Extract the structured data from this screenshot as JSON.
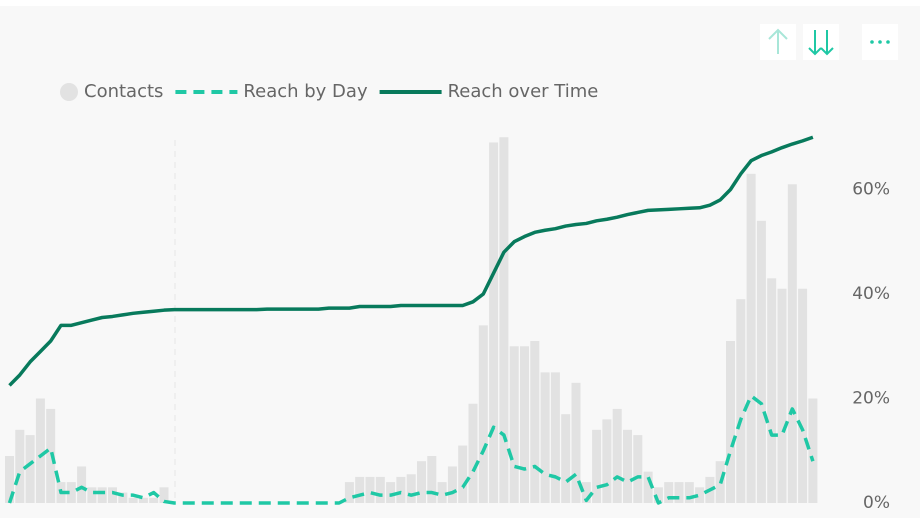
{
  "chart_data": {
    "type": "combo",
    "categories": [
      null,
      null,
      null,
      null,
      null,
      null,
      null,
      null,
      null,
      null,
      null,
      null,
      null,
      null,
      null,
      null,
      null,
      null,
      null,
      null,
      null,
      null,
      null,
      null,
      null,
      null,
      null,
      null,
      null,
      null,
      null,
      null,
      null,
      null,
      null,
      null,
      null,
      null,
      null,
      null,
      null,
      null,
      null,
      null,
      null,
      null,
      null,
      null,
      null,
      null,
      null,
      null,
      null,
      null,
      null,
      null,
      null,
      null,
      null,
      null,
      null,
      null,
      null,
      null,
      null,
      null,
      null,
      null,
      null,
      null,
      null,
      null,
      null,
      null,
      null,
      null,
      null,
      null,
      null
    ],
    "series": [
      {
        "name": "Contacts",
        "kind": "bar",
        "axis": "y",
        "color": "#e2e2e2",
        "values": [
          9,
          14,
          13,
          20,
          18,
          4,
          4,
          7,
          3,
          3,
          3,
          2,
          1,
          1,
          1,
          3,
          0,
          0,
          0,
          0,
          0,
          0,
          0,
          0,
          0,
          0,
          0,
          0,
          0,
          0,
          0,
          0,
          0,
          4,
          5,
          5,
          5,
          4,
          5,
          5.5,
          8,
          9,
          4,
          7,
          11,
          19,
          34,
          69,
          70,
          30,
          30,
          31,
          25,
          25,
          17,
          23,
          4,
          14,
          16,
          18,
          14,
          13,
          6,
          3,
          4,
          4,
          4,
          3,
          5,
          8,
          31,
          39,
          63,
          54,
          43,
          41,
          61,
          41,
          20
        ]
      },
      {
        "name": "Reach by Day",
        "kind": "line",
        "dash": true,
        "axis": "y2",
        "color": "#1fc8a5",
        "values": [
          0,
          6,
          7.5,
          9,
          10.5,
          2,
          2,
          3,
          2,
          2,
          2,
          1.5,
          1.5,
          1,
          2,
          0.3,
          0,
          0,
          0,
          0,
          0,
          0,
          0,
          0,
          0,
          0,
          0,
          0,
          0,
          0,
          0,
          0,
          0,
          1,
          1.5,
          2,
          1.5,
          1.5,
          2,
          1.5,
          2,
          2,
          1.5,
          2,
          3,
          6,
          10,
          14.5,
          13,
          7,
          6.5,
          7,
          5.5,
          5,
          4,
          5.5,
          0.5,
          3,
          3.5,
          5,
          4,
          5,
          5,
          0,
          1,
          1,
          1,
          1.5,
          2.5,
          3.5,
          10,
          16,
          20.5,
          19,
          13,
          13,
          18,
          14,
          8
        ]
      },
      {
        "name": "Reach over Time",
        "kind": "line",
        "dash": false,
        "axis": "y2",
        "color": "#087a5c",
        "values": [
          22.5,
          24.5,
          27,
          29,
          31,
          34,
          34,
          34.5,
          35,
          35.5,
          35.7,
          36,
          36.3,
          36.5,
          36.7,
          36.9,
          37,
          37,
          37,
          37,
          37,
          37,
          37,
          37,
          37,
          37.1,
          37.1,
          37.1,
          37.1,
          37.1,
          37.1,
          37.3,
          37.3,
          37.3,
          37.6,
          37.6,
          37.6,
          37.6,
          37.8,
          37.8,
          37.8,
          37.8,
          37.8,
          37.8,
          37.8,
          38.5,
          40,
          44,
          48,
          50,
          51,
          51.8,
          52.2,
          52.5,
          53,
          53.3,
          53.5,
          54,
          54.3,
          54.7,
          55.2,
          55.6,
          56,
          56.1,
          56.2,
          56.3,
          56.4,
          56.5,
          57,
          58,
          60,
          63,
          65.5,
          66.5,
          67.2,
          68,
          68.7,
          69.3,
          70
        ]
      }
    ],
    "ylim": [
      0,
      71
    ],
    "y2lim": [
      0,
      71
    ],
    "y2ticks": [
      {
        "value": 0,
        "label": "0%"
      },
      {
        "value": 20,
        "label": "20%"
      },
      {
        "value": 40,
        "label": "40%"
      },
      {
        "value": 60,
        "label": "60%"
      }
    ]
  }
}
